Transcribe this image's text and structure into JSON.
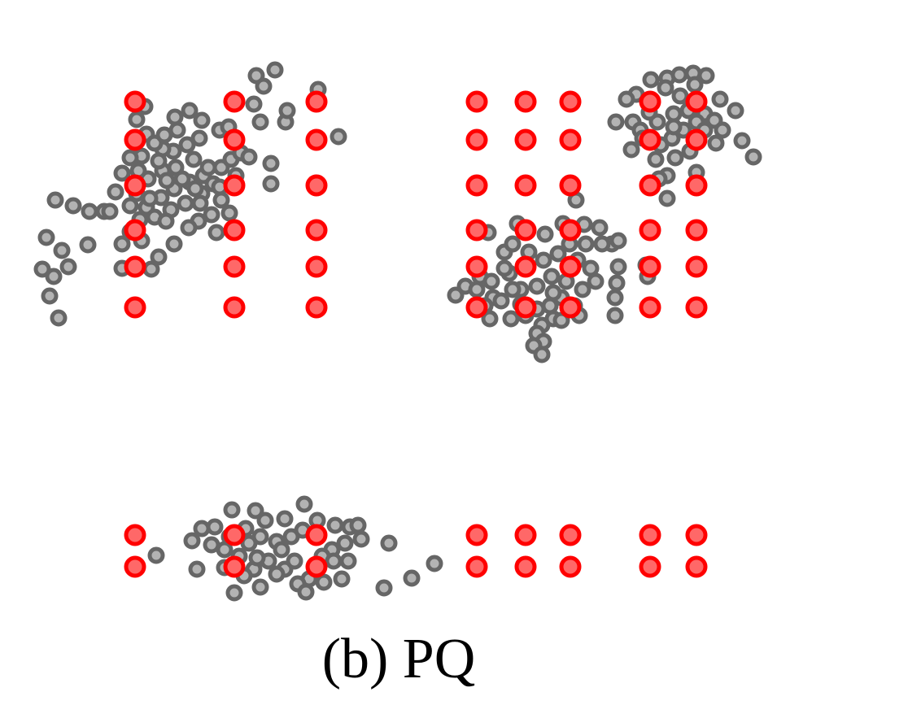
{
  "figure": {
    "caption": "(b) PQ"
  },
  "chart_data": {
    "type": "scatter",
    "title": "",
    "xlabel": "",
    "ylabel": "",
    "xlim": [
      30,
      950
    ],
    "ylim": [
      883,
      0
    ],
    "grid": false,
    "colors": {
      "centroid": "#ff0000",
      "centroid_fill": "#ff6868",
      "point": "#666666",
      "point_fill": "#b3b3b3"
    },
    "series": [
      {
        "role": "centroid",
        "points": [
          [
            166,
            125
          ],
          [
            166,
            172
          ],
          [
            166,
            228
          ],
          [
            166,
            283
          ],
          [
            166,
            328
          ],
          [
            166,
            378
          ],
          [
            288,
            125
          ],
          [
            288,
            172
          ],
          [
            288,
            228
          ],
          [
            288,
            283
          ],
          [
            288,
            328
          ],
          [
            288,
            378
          ],
          [
            389,
            125
          ],
          [
            389,
            172
          ],
          [
            389,
            228
          ],
          [
            389,
            283
          ],
          [
            389,
            328
          ],
          [
            389,
            378
          ],
          [
            586,
            125
          ],
          [
            586,
            172
          ],
          [
            586,
            228
          ],
          [
            586,
            283
          ],
          [
            586,
            328
          ],
          [
            586,
            378
          ],
          [
            646,
            125
          ],
          [
            646,
            172
          ],
          [
            646,
            228
          ],
          [
            646,
            283
          ],
          [
            646,
            328
          ],
          [
            646,
            378
          ],
          [
            701,
            125
          ],
          [
            701,
            172
          ],
          [
            701,
            228
          ],
          [
            701,
            283
          ],
          [
            701,
            328
          ],
          [
            701,
            378
          ],
          [
            799,
            125
          ],
          [
            799,
            172
          ],
          [
            799,
            228
          ],
          [
            799,
            283
          ],
          [
            799,
            328
          ],
          [
            799,
            378
          ],
          [
            856,
            125
          ],
          [
            856,
            172
          ],
          [
            856,
            228
          ],
          [
            856,
            283
          ],
          [
            856,
            328
          ],
          [
            856,
            378
          ],
          [
            166,
            658
          ],
          [
            166,
            697
          ],
          [
            288,
            658
          ],
          [
            288,
            697
          ],
          [
            389,
            658
          ],
          [
            389,
            697
          ],
          [
            586,
            658
          ],
          [
            586,
            697
          ],
          [
            646,
            658
          ],
          [
            646,
            697
          ],
          [
            701,
            658
          ],
          [
            701,
            697
          ],
          [
            799,
            658
          ],
          [
            799,
            697
          ],
          [
            856,
            658
          ],
          [
            856,
            697
          ]
        ]
      },
      {
        "role": "point",
        "points": [
          [
            338,
            86
          ],
          [
            315,
            93
          ],
          [
            391,
            110
          ],
          [
            324,
            106
          ],
          [
            320,
            150
          ],
          [
            351,
            150
          ],
          [
            353,
            136
          ],
          [
            416,
            168
          ],
          [
            333,
            201
          ],
          [
            333,
            226
          ],
          [
            312,
            128
          ],
          [
            270,
            160
          ],
          [
            281,
            156
          ],
          [
            248,
            148
          ],
          [
            233,
            136
          ],
          [
            215,
            144
          ],
          [
            245,
            170
          ],
          [
            230,
            178
          ],
          [
            213,
            186
          ],
          [
            200,
            183
          ],
          [
            178,
            131
          ],
          [
            168,
            147
          ],
          [
            180,
            165
          ],
          [
            190,
            176
          ],
          [
            202,
            166
          ],
          [
            174,
            192
          ],
          [
            160,
            194
          ],
          [
            150,
            213
          ],
          [
            142,
            236
          ],
          [
            168,
            238
          ],
          [
            182,
            220
          ],
          [
            200,
            210
          ],
          [
            216,
            206
          ],
          [
            238,
            196
          ],
          [
            250,
            216
          ],
          [
            233,
            224
          ],
          [
            214,
            232
          ],
          [
            198,
            243
          ],
          [
            180,
            255
          ],
          [
            172,
            270
          ],
          [
            190,
            267
          ],
          [
            210,
            258
          ],
          [
            228,
            250
          ],
          [
            248,
            238
          ],
          [
            262,
            226
          ],
          [
            272,
            206
          ],
          [
            284,
            196
          ],
          [
            296,
            188
          ],
          [
            306,
            193
          ],
          [
            290,
            216
          ],
          [
            272,
            246
          ],
          [
            260,
            264
          ],
          [
            244,
            272
          ],
          [
            232,
            280
          ],
          [
            266,
            286
          ],
          [
            214,
            300
          ],
          [
            195,
            316
          ],
          [
            186,
            331
          ],
          [
            174,
            296
          ],
          [
            150,
            300
          ],
          [
            128,
            260
          ],
          [
            110,
            260
          ],
          [
            90,
            253
          ],
          [
            68,
            246
          ],
          [
            57,
            292
          ],
          [
            76,
            308
          ],
          [
            84,
            328
          ],
          [
            52,
            331
          ],
          [
            66,
            340
          ],
          [
            61,
            364
          ],
          [
            72,
            391
          ],
          [
            108,
            301
          ],
          [
            150,
            330
          ],
          [
            135,
            260
          ],
          [
            224,
            220
          ],
          [
            256,
            206
          ],
          [
            240,
            232
          ],
          [
            205,
            222
          ],
          [
            195,
            198
          ],
          [
            170,
            210
          ],
          [
            160,
            253
          ],
          [
            184,
            244
          ],
          [
            204,
            272
          ],
          [
            160,
            285
          ],
          [
            270,
            230
          ],
          [
            282,
            262
          ],
          [
            246,
            250
          ],
          [
            218,
            160
          ],
          [
            800,
            98
          ],
          [
            820,
            96
          ],
          [
            835,
            92
          ],
          [
            852,
            90
          ],
          [
            868,
            93
          ],
          [
            782,
            116
          ],
          [
            770,
            122
          ],
          [
            885,
            122
          ],
          [
            904,
            136
          ],
          [
            757,
            150
          ],
          [
            778,
            150
          ],
          [
            787,
            160
          ],
          [
            808,
            150
          ],
          [
            828,
            140
          ],
          [
            846,
            136
          ],
          [
            866,
            140
          ],
          [
            878,
            148
          ],
          [
            888,
            160
          ],
          [
            880,
            176
          ],
          [
            912,
            173
          ],
          [
            926,
            193
          ],
          [
            776,
            184
          ],
          [
            790,
            170
          ],
          [
            812,
            178
          ],
          [
            826,
            170
          ],
          [
            840,
            160
          ],
          [
            856,
            150
          ],
          [
            848,
            186
          ],
          [
            830,
            194
          ],
          [
            806,
            196
          ],
          [
            820,
            216
          ],
          [
            810,
            220
          ],
          [
            856,
            212
          ],
          [
            820,
            244
          ],
          [
            836,
            118
          ],
          [
            818,
            108
          ],
          [
            854,
            104
          ],
          [
            798,
            138
          ],
          [
            866,
            160
          ],
          [
            828,
            156
          ],
          [
            636,
            275
          ],
          [
            670,
            288
          ],
          [
            692,
            275
          ],
          [
            718,
            276
          ],
          [
            737,
            280
          ],
          [
            708,
            246
          ],
          [
            600,
            286
          ],
          [
            620,
            310
          ],
          [
            590,
            340
          ],
          [
            572,
            352
          ],
          [
            560,
            363
          ],
          [
            586,
            356
          ],
          [
            604,
            346
          ],
          [
            626,
            336
          ],
          [
            640,
            356
          ],
          [
            660,
            352
          ],
          [
            678,
            340
          ],
          [
            696,
            346
          ],
          [
            716,
            356
          ],
          [
            732,
            346
          ],
          [
            752,
            300
          ],
          [
            760,
            296
          ],
          [
            760,
            328
          ],
          [
            758,
            348
          ],
          [
            756,
            366
          ],
          [
            756,
            388
          ],
          [
            726,
            330
          ],
          [
            710,
            320
          ],
          [
            686,
            312
          ],
          [
            668,
            320
          ],
          [
            650,
            310
          ],
          [
            630,
            300
          ],
          [
            620,
            330
          ],
          [
            606,
            366
          ],
          [
            596,
            376
          ],
          [
            602,
            392
          ],
          [
            628,
            392
          ],
          [
            646,
            388
          ],
          [
            660,
            380
          ],
          [
            676,
            376
          ],
          [
            690,
            366
          ],
          [
            706,
            376
          ],
          [
            712,
            388
          ],
          [
            680,
            392
          ],
          [
            666,
            400
          ],
          [
            660,
            410
          ],
          [
            668,
            420
          ],
          [
            656,
            425
          ],
          [
            666,
            436
          ],
          [
            640,
            374
          ],
          [
            616,
            370
          ],
          [
            700,
            300
          ],
          [
            720,
            300
          ],
          [
            680,
            360
          ],
          [
            702,
            330
          ],
          [
            740,
            300
          ],
          [
            794,
            326
          ],
          [
            796,
            340
          ],
          [
            630,
            356
          ],
          [
            690,
            394
          ],
          [
            285,
            627
          ],
          [
            314,
            628
          ],
          [
            374,
            620
          ],
          [
            350,
            638
          ],
          [
            326,
            640
          ],
          [
            302,
            650
          ],
          [
            264,
            648
          ],
          [
            248,
            650
          ],
          [
            236,
            665
          ],
          [
            260,
            670
          ],
          [
            276,
            676
          ],
          [
            294,
            684
          ],
          [
            306,
            668
          ],
          [
            320,
            660
          ],
          [
            340,
            666
          ],
          [
            358,
            660
          ],
          [
            372,
            652
          ],
          [
            390,
            640
          ],
          [
            412,
            646
          ],
          [
            430,
            648
          ],
          [
            440,
            646
          ],
          [
            444,
            663
          ],
          [
            424,
            668
          ],
          [
            408,
            676
          ],
          [
            396,
            684
          ],
          [
            410,
            690
          ],
          [
            428,
            690
          ],
          [
            420,
            712
          ],
          [
            398,
            716
          ],
          [
            380,
            712
          ],
          [
            366,
            718
          ],
          [
            376,
            728
          ],
          [
            350,
            700
          ],
          [
            330,
            690
          ],
          [
            312,
            700
          ],
          [
            300,
            708
          ],
          [
            288,
            729
          ],
          [
            320,
            722
          ],
          [
            276,
            698
          ],
          [
            242,
            700
          ],
          [
            192,
            683
          ],
          [
            478,
            668
          ],
          [
            534,
            693
          ],
          [
            506,
            711
          ],
          [
            472,
            723
          ],
          [
            346,
            676
          ],
          [
            362,
            690
          ],
          [
            340,
            706
          ],
          [
            316,
            686
          ],
          [
            282,
            660
          ]
        ]
      }
    ]
  }
}
